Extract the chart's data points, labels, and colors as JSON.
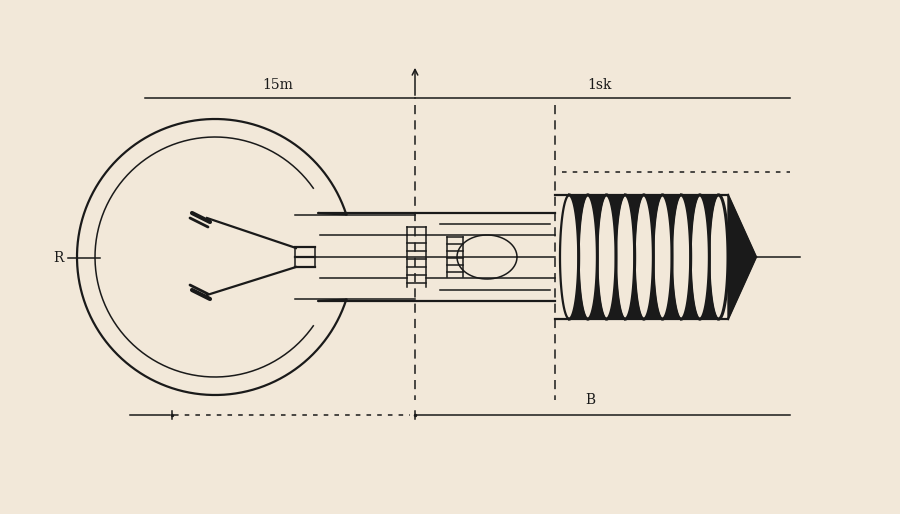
{
  "bg_color": "#f2e8d9",
  "line_color": "#1a1a1a",
  "lw_main": 1.6,
  "lw_thin": 1.1,
  "lw_thick": 2.2,
  "label_15m": "15m",
  "label_1sk": "1sk",
  "label_R": "R",
  "label_B": "B",
  "figsize": [
    9.0,
    5.14
  ],
  "dpi": 100
}
